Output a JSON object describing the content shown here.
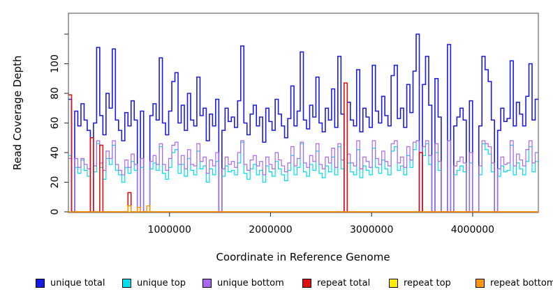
{
  "figure": {
    "x_axis_title": "Coordinate in Reference Genome",
    "y_axis_title": "Read Coverage Depth"
  },
  "chart_data": {
    "type": "line",
    "step": true,
    "title": "",
    "xlabel": "Coordinate in Reference Genome",
    "ylabel": "Read Coverage Depth",
    "xlim": [
      0,
      4650000
    ],
    "ylim": [
      0,
      134
    ],
    "grid": false,
    "legend_position": "bottom",
    "bin_size": 31000,
    "x_ticks": [
      {
        "value": 1000000,
        "label": "1000000"
      },
      {
        "value": 2000000,
        "label": "2000000"
      },
      {
        "value": 3000000,
        "label": "3000000"
      },
      {
        "value": 4000000,
        "label": "4000000"
      }
    ],
    "y_ticks": [
      {
        "value": 0,
        "label": "0"
      },
      {
        "value": 20,
        "label": "20"
      },
      {
        "value": 40,
        "label": "40"
      },
      {
        "value": 60,
        "label": "60"
      },
      {
        "value": 80,
        "label": "80"
      },
      {
        "value": 100,
        "label": "100"
      },
      {
        "value": 120,
        "label": ""
      }
    ],
    "series": [
      {
        "name": "unique total",
        "color": "#1A1AE8",
        "width": 1.6,
        "values": [
          76,
          0,
          68,
          58,
          73,
          62,
          55,
          0,
          60,
          111,
          65,
          52,
          80,
          70,
          110,
          62,
          55,
          48,
          67,
          58,
          75,
          62,
          0,
          68,
          0,
          0,
          65,
          73,
          62,
          104,
          60,
          52,
          68,
          88,
          94,
          60,
          72,
          55,
          80,
          62,
          58,
          91,
          65,
          70,
          48,
          66,
          58,
          76,
          0,
          55,
          70,
          61,
          64,
          57,
          75,
          112,
          60,
          52,
          66,
          72,
          58,
          64,
          47,
          70,
          61,
          55,
          76,
          66,
          58,
          50,
          63,
          85,
          58,
          68,
          108,
          62,
          56,
          72,
          64,
          91,
          60,
          54,
          70,
          62,
          83,
          57,
          105,
          66,
          0,
          74,
          62,
          58,
          96,
          54,
          70,
          64,
          57,
          99,
          68,
          60,
          78,
          65,
          58,
          92,
          99,
          63,
          70,
          57,
          86,
          67,
          95,
          120,
          0,
          86,
          105,
          72,
          0,
          90,
          64,
          0,
          0,
          113,
          0,
          58,
          64,
          70,
          62,
          0,
          75,
          0,
          0,
          58,
          105,
          96,
          88,
          62,
          0,
          55,
          70,
          61,
          63,
          102,
          58,
          74,
          66,
          58,
          78,
          100,
          62,
          76
        ]
      },
      {
        "name": "unique top",
        "color": "#00DDEE",
        "width": 1.2,
        "values": [
          38,
          0,
          30,
          26,
          35,
          28,
          24,
          0,
          27,
          46,
          30,
          22,
          36,
          32,
          45,
          28,
          25,
          20,
          30,
          26,
          34,
          28,
          0,
          30,
          0,
          0,
          29,
          33,
          28,
          44,
          26,
          22,
          30,
          40,
          42,
          26,
          32,
          24,
          36,
          28,
          25,
          41,
          29,
          31,
          20,
          29,
          25,
          34,
          0,
          24,
          31,
          27,
          28,
          25,
          33,
          47,
          26,
          22,
          29,
          32,
          25,
          28,
          20,
          31,
          27,
          24,
          34,
          29,
          25,
          21,
          28,
          38,
          25,
          30,
          46,
          27,
          24,
          32,
          28,
          41,
          26,
          23,
          31,
          27,
          37,
          25,
          44,
          29,
          0,
          33,
          27,
          25,
          42,
          23,
          31,
          28,
          25,
          43,
          30,
          26,
          35,
          29,
          25,
          41,
          44,
          28,
          31,
          25,
          38,
          30,
          42,
          48,
          0,
          38,
          46,
          32,
          0,
          40,
          28,
          0,
          0,
          48,
          0,
          25,
          28,
          31,
          27,
          0,
          33,
          0,
          0,
          25,
          46,
          42,
          39,
          27,
          0,
          24,
          31,
          27,
          28,
          45,
          25,
          33,
          29,
          25,
          34,
          44,
          27,
          34
        ]
      },
      {
        "name": "unique bottom",
        "color": "#AC66EE",
        "width": 1.2,
        "values": [
          36,
          0,
          36,
          30,
          36,
          32,
          29,
          0,
          31,
          48,
          33,
          28,
          41,
          36,
          48,
          32,
          28,
          25,
          35,
          30,
          39,
          32,
          0,
          36,
          0,
          0,
          34,
          38,
          32,
          46,
          32,
          28,
          36,
          45,
          47,
          32,
          38,
          29,
          42,
          32,
          31,
          46,
          34,
          37,
          26,
          35,
          31,
          40,
          0,
          29,
          37,
          32,
          34,
          30,
          40,
          48,
          32,
          28,
          35,
          38,
          31,
          34,
          25,
          37,
          32,
          29,
          40,
          35,
          31,
          27,
          33,
          44,
          31,
          36,
          47,
          33,
          30,
          38,
          34,
          46,
          32,
          29,
          37,
          33,
          43,
          30,
          46,
          35,
          0,
          39,
          33,
          31,
          48,
          29,
          37,
          34,
          30,
          48,
          36,
          32,
          41,
          34,
          31,
          46,
          48,
          33,
          37,
          30,
          44,
          35,
          47,
          48,
          0,
          44,
          48,
          38,
          0,
          46,
          34,
          0,
          0,
          48,
          0,
          31,
          34,
          37,
          33,
          0,
          40,
          0,
          0,
          31,
          48,
          46,
          44,
          33,
          0,
          29,
          37,
          32,
          33,
          48,
          31,
          39,
          35,
          31,
          42,
          48,
          33,
          40
        ]
      },
      {
        "name": "repeat total",
        "color": "#DD1111",
        "width": 1.6,
        "values": {
          "length": 150,
          "default": 0,
          "overrides": {
            "0": 79,
            "7": 50,
            "10": 45,
            "19": 13,
            "88": 87,
            "112": 40
          }
        }
      },
      {
        "name": "repeat top",
        "color": "#FFEB00",
        "width": 1.1,
        "values": {
          "length": 150,
          "default": 0,
          "overrides": {}
        }
      },
      {
        "name": "repeat bottom",
        "color": "#FF9500",
        "width": 1.5,
        "values": {
          "length": 150,
          "default": 0,
          "overrides": {
            "19": 4,
            "22": 3,
            "25": 4
          }
        }
      }
    ]
  }
}
